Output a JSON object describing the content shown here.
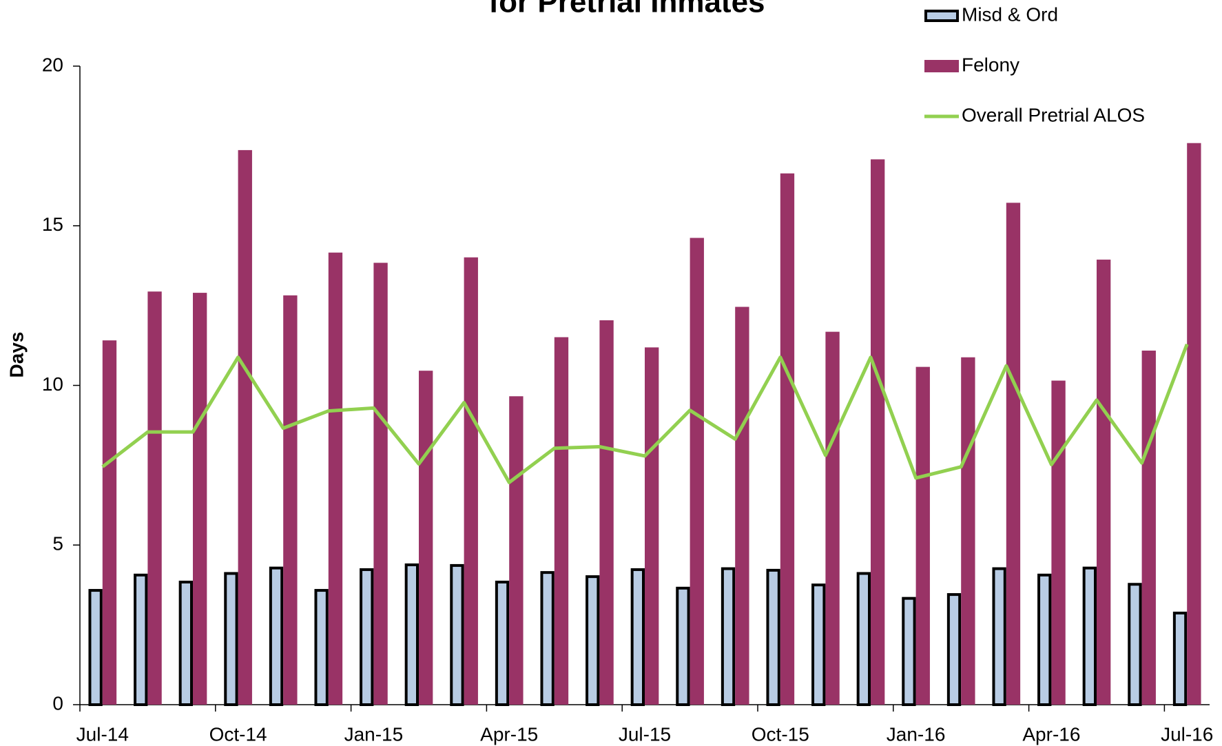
{
  "chart_data": {
    "type": "bar_line",
    "title": "for Pretrial Inmates",
    "y_label": "Days",
    "categories": [
      "Jul-14",
      null,
      null,
      "Oct-14",
      null,
      null,
      "Jan-15",
      null,
      null,
      "Apr-15",
      null,
      null,
      "Jul-15",
      null,
      null,
      "Oct-15",
      null,
      null,
      "Jan-16",
      null,
      null,
      "Apr-16",
      null,
      null,
      "Jul-16"
    ],
    "series": [
      {
        "name": "Misd & Ord",
        "type": "bar",
        "color": "#b8cce4",
        "edge_color": "#000000",
        "values": [
          3.58,
          4.06,
          3.84,
          4.11,
          4.28,
          3.58,
          4.23,
          4.38,
          4.36,
          3.84,
          4.14,
          4.01,
          4.23,
          3.65,
          4.26,
          4.21,
          3.75,
          4.11,
          3.33,
          3.45,
          4.26,
          4.06,
          4.28,
          3.77,
          2.87
        ]
      },
      {
        "name": "Felony",
        "type": "bar",
        "color": "#993366",
        "values": [
          11.41,
          12.94,
          12.9,
          17.37,
          12.82,
          14.16,
          13.84,
          10.46,
          14.01,
          9.66,
          11.51,
          12.04,
          11.19,
          14.62,
          12.46,
          16.64,
          11.68,
          17.08,
          10.58,
          10.88,
          15.72,
          10.15,
          13.94,
          11.09,
          17.59
        ]
      },
      {
        "name": "Overall Pretrial ALOS",
        "type": "line",
        "color": "#92d050",
        "values": [
          7.45,
          8.54,
          8.54,
          10.88,
          8.66,
          9.2,
          9.29,
          7.54,
          9.46,
          6.96,
          8.03,
          8.08,
          7.79,
          9.22,
          8.32,
          10.88,
          7.81,
          10.88,
          7.1,
          7.45,
          10.61,
          7.52,
          9.54,
          7.57,
          11.29
        ]
      }
    ],
    "ylim": [
      0,
      20
    ],
    "yticks": [
      0,
      5,
      10,
      15,
      20
    ],
    "grid": false,
    "legend": "top-right"
  }
}
